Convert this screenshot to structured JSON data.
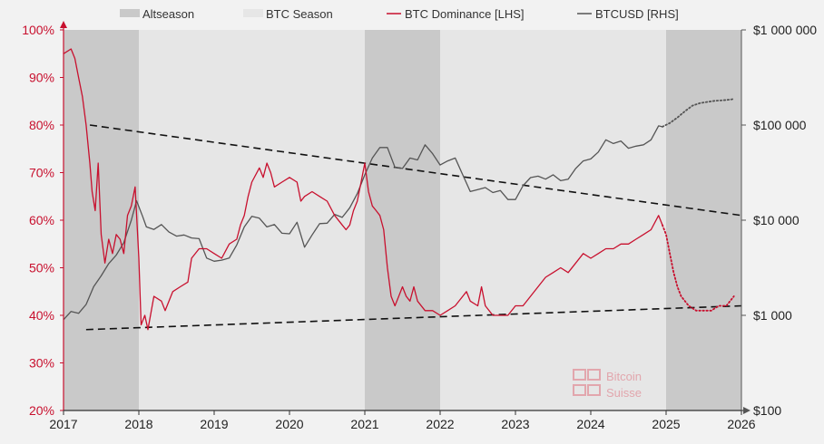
{
  "chart_data": {
    "type": "line",
    "title": "",
    "legend": {
      "placement": "top",
      "items": [
        {
          "label": "Altseason",
          "kind": "band",
          "color": "#c9c9c9"
        },
        {
          "label": "BTC Season",
          "kind": "band",
          "color": "#e6e6e6"
        },
        {
          "label": "BTC Dominance [LHS]",
          "kind": "line",
          "color": "#c8102e"
        },
        {
          "label": "BTCUSD [RHS]",
          "kind": "line",
          "color": "#555555"
        }
      ]
    },
    "x_axis": {
      "range": [
        2017.0,
        2026.0
      ],
      "ticks": [
        "2017",
        "2018",
        "2019",
        "2020",
        "2021",
        "2022",
        "2023",
        "2024",
        "2025",
        "2026"
      ]
    },
    "y_left": {
      "range": [
        20,
        100
      ],
      "unit": "%",
      "ticks": [
        "20%",
        "30%",
        "40%",
        "50%",
        "60%",
        "70%",
        "80%",
        "90%",
        "100%"
      ],
      "color": "#c8102e"
    },
    "y_right": {
      "scale": "log",
      "range": [
        100,
        1000000
      ],
      "ticks": [
        "$100",
        "$1 000",
        "$10 000",
        "$100 000",
        "$1 000 000"
      ]
    },
    "bands": [
      {
        "label": "Altseason",
        "start": 2017.0,
        "end": 2018.0
      },
      {
        "label": "BTC Season",
        "start": 2018.0,
        "end": 2021.0
      },
      {
        "label": "Altseason",
        "start": 2021.0,
        "end": 2022.0
      },
      {
        "label": "BTC Season",
        "start": 2022.0,
        "end": 2025.0
      },
      {
        "label": "Altseason",
        "start": 2025.0,
        "end": 2026.0
      }
    ],
    "series": [
      {
        "name": "BTC Dominance [LHS]",
        "axis": "left",
        "color": "#c8102e",
        "points": [
          [
            2017.0,
            95
          ],
          [
            2017.1,
            96
          ],
          [
            2017.15,
            94
          ],
          [
            2017.2,
            90
          ],
          [
            2017.25,
            86
          ],
          [
            2017.3,
            80
          ],
          [
            2017.35,
            72
          ],
          [
            2017.38,
            66
          ],
          [
            2017.42,
            62
          ],
          [
            2017.46,
            72
          ],
          [
            2017.5,
            57
          ],
          [
            2017.55,
            51
          ],
          [
            2017.6,
            56
          ],
          [
            2017.65,
            53
          ],
          [
            2017.7,
            57
          ],
          [
            2017.75,
            56
          ],
          [
            2017.8,
            53
          ],
          [
            2017.85,
            61
          ],
          [
            2017.9,
            63
          ],
          [
            2017.95,
            67
          ],
          [
            2018.0,
            52
          ],
          [
            2018.03,
            38
          ],
          [
            2018.08,
            40
          ],
          [
            2018.12,
            37
          ],
          [
            2018.2,
            44
          ],
          [
            2018.3,
            43
          ],
          [
            2018.35,
            41
          ],
          [
            2018.45,
            45
          ],
          [
            2018.55,
            46
          ],
          [
            2018.65,
            47
          ],
          [
            2018.7,
            52
          ],
          [
            2018.8,
            54
          ],
          [
            2018.9,
            54
          ],
          [
            2019.0,
            53
          ],
          [
            2019.1,
            52
          ],
          [
            2019.2,
            55
          ],
          [
            2019.3,
            56
          ],
          [
            2019.35,
            59
          ],
          [
            2019.4,
            61
          ],
          [
            2019.45,
            65
          ],
          [
            2019.5,
            68
          ],
          [
            2019.6,
            71
          ],
          [
            2019.65,
            69
          ],
          [
            2019.7,
            72
          ],
          [
            2019.75,
            70
          ],
          [
            2019.8,
            67
          ],
          [
            2019.9,
            68
          ],
          [
            2020.0,
            69
          ],
          [
            2020.1,
            68
          ],
          [
            2020.15,
            64
          ],
          [
            2020.2,
            65
          ],
          [
            2020.3,
            66
          ],
          [
            2020.4,
            65
          ],
          [
            2020.5,
            64
          ],
          [
            2020.6,
            61
          ],
          [
            2020.7,
            59
          ],
          [
            2020.75,
            58
          ],
          [
            2020.8,
            59
          ],
          [
            2020.85,
            62
          ],
          [
            2020.9,
            64
          ],
          [
            2020.95,
            68
          ],
          [
            2021.0,
            72
          ],
          [
            2021.05,
            66
          ],
          [
            2021.1,
            63
          ],
          [
            2021.15,
            62
          ],
          [
            2021.2,
            61
          ],
          [
            2021.25,
            58
          ],
          [
            2021.3,
            50
          ],
          [
            2021.35,
            44
          ],
          [
            2021.4,
            42
          ],
          [
            2021.45,
            44
          ],
          [
            2021.5,
            46
          ],
          [
            2021.55,
            44
          ],
          [
            2021.6,
            43
          ],
          [
            2021.65,
            46
          ],
          [
            2021.7,
            43
          ],
          [
            2021.8,
            41
          ],
          [
            2021.9,
            41
          ],
          [
            2022.0,
            40
          ],
          [
            2022.1,
            41
          ],
          [
            2022.2,
            42
          ],
          [
            2022.3,
            44
          ],
          [
            2022.35,
            45
          ],
          [
            2022.4,
            43
          ],
          [
            2022.5,
            42
          ],
          [
            2022.55,
            46
          ],
          [
            2022.6,
            42
          ],
          [
            2022.7,
            40
          ],
          [
            2022.8,
            40
          ],
          [
            2022.9,
            40
          ],
          [
            2023.0,
            42
          ],
          [
            2023.1,
            42
          ],
          [
            2023.2,
            44
          ],
          [
            2023.3,
            46
          ],
          [
            2023.4,
            48
          ],
          [
            2023.5,
            49
          ],
          [
            2023.6,
            50
          ],
          [
            2023.7,
            49
          ],
          [
            2023.8,
            51
          ],
          [
            2023.9,
            53
          ],
          [
            2024.0,
            52
          ],
          [
            2024.1,
            53
          ],
          [
            2024.2,
            54
          ],
          [
            2024.3,
            54
          ],
          [
            2024.4,
            55
          ],
          [
            2024.5,
            55
          ],
          [
            2024.6,
            56
          ],
          [
            2024.7,
            57
          ],
          [
            2024.8,
            58
          ],
          [
            2024.9,
            61
          ],
          [
            2024.95,
            59
          ]
        ],
        "projection": [
          [
            2024.95,
            59
          ],
          [
            2025.0,
            57
          ],
          [
            2025.05,
            53
          ],
          [
            2025.1,
            49
          ],
          [
            2025.15,
            46
          ],
          [
            2025.2,
            44
          ],
          [
            2025.3,
            42
          ],
          [
            2025.4,
            41
          ],
          [
            2025.5,
            41
          ],
          [
            2025.6,
            41
          ],
          [
            2025.7,
            42
          ],
          [
            2025.8,
            42
          ],
          [
            2025.9,
            44
          ]
        ]
      },
      {
        "name": "BTCUSD [RHS]",
        "axis": "right",
        "color": "#555555",
        "points": [
          [
            2017.0,
            900
          ],
          [
            2017.1,
            1100
          ],
          [
            2017.2,
            1050
          ],
          [
            2017.3,
            1300
          ],
          [
            2017.4,
            2000
          ],
          [
            2017.5,
            2600
          ],
          [
            2017.6,
            3500
          ],
          [
            2017.7,
            4300
          ],
          [
            2017.8,
            5800
          ],
          [
            2017.9,
            10000
          ],
          [
            2017.97,
            16000
          ],
          [
            2018.05,
            11000
          ],
          [
            2018.1,
            8500
          ],
          [
            2018.2,
            8000
          ],
          [
            2018.3,
            9000
          ],
          [
            2018.4,
            7500
          ],
          [
            2018.5,
            6800
          ],
          [
            2018.6,
            7000
          ],
          [
            2018.7,
            6500
          ],
          [
            2018.8,
            6400
          ],
          [
            2018.9,
            4000
          ],
          [
            2019.0,
            3700
          ],
          [
            2019.1,
            3800
          ],
          [
            2019.2,
            4000
          ],
          [
            2019.3,
            5500
          ],
          [
            2019.4,
            8500
          ],
          [
            2019.5,
            11000
          ],
          [
            2019.6,
            10500
          ],
          [
            2019.7,
            8500
          ],
          [
            2019.8,
            9000
          ],
          [
            2019.9,
            7300
          ],
          [
            2020.0,
            7200
          ],
          [
            2020.1,
            9500
          ],
          [
            2020.2,
            5200
          ],
          [
            2020.3,
            7000
          ],
          [
            2020.4,
            9200
          ],
          [
            2020.5,
            9300
          ],
          [
            2020.6,
            11500
          ],
          [
            2020.7,
            10700
          ],
          [
            2020.8,
            13500
          ],
          [
            2020.9,
            19000
          ],
          [
            2021.0,
            30000
          ],
          [
            2021.1,
            45000
          ],
          [
            2021.2,
            58000
          ],
          [
            2021.3,
            58000
          ],
          [
            2021.4,
            36000
          ],
          [
            2021.5,
            35000
          ],
          [
            2021.6,
            45000
          ],
          [
            2021.7,
            43000
          ],
          [
            2021.8,
            62000
          ],
          [
            2021.9,
            50000
          ],
          [
            2022.0,
            38000
          ],
          [
            2022.1,
            42000
          ],
          [
            2022.2,
            45000
          ],
          [
            2022.3,
            30000
          ],
          [
            2022.4,
            20000
          ],
          [
            2022.5,
            21000
          ],
          [
            2022.6,
            22000
          ],
          [
            2022.7,
            19500
          ],
          [
            2022.8,
            20500
          ],
          [
            2022.9,
            16500
          ],
          [
            2023.0,
            16500
          ],
          [
            2023.1,
            23000
          ],
          [
            2023.2,
            28000
          ],
          [
            2023.3,
            29000
          ],
          [
            2023.4,
            27000
          ],
          [
            2023.5,
            30000
          ],
          [
            2023.6,
            26000
          ],
          [
            2023.7,
            27000
          ],
          [
            2023.8,
            35000
          ],
          [
            2023.9,
            42000
          ],
          [
            2024.0,
            44000
          ],
          [
            2024.1,
            52000
          ],
          [
            2024.2,
            70000
          ],
          [
            2024.3,
            64000
          ],
          [
            2024.4,
            68000
          ],
          [
            2024.5,
            57000
          ],
          [
            2024.6,
            60000
          ],
          [
            2024.7,
            62000
          ],
          [
            2024.8,
            70000
          ],
          [
            2024.9,
            98000
          ],
          [
            2024.95,
            96000
          ]
        ],
        "projection": [
          [
            2024.95,
            96000
          ],
          [
            2025.05,
            105000
          ],
          [
            2025.15,
            120000
          ],
          [
            2025.25,
            140000
          ],
          [
            2025.35,
            160000
          ],
          [
            2025.45,
            170000
          ],
          [
            2025.55,
            175000
          ],
          [
            2025.65,
            180000
          ],
          [
            2025.75,
            182000
          ],
          [
            2025.85,
            185000
          ],
          [
            2025.9,
            188000
          ]
        ]
      }
    ],
    "trendlines": [
      {
        "axis": "left",
        "from": [
          2017.35,
          80
        ],
        "to": [
          2026.0,
          61
        ]
      },
      {
        "axis": "left",
        "from": [
          2017.3,
          37
        ],
        "to": [
          2026.0,
          42
        ]
      }
    ],
    "watermark": {
      "line1": "Bitcoin",
      "line2": "Suisse",
      "color": "#e2a6ad"
    }
  }
}
